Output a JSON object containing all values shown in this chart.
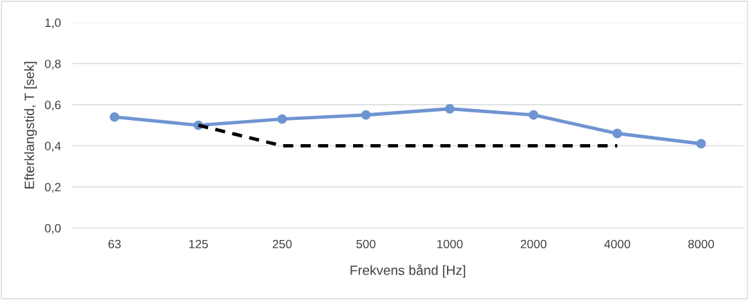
{
  "chart_data": {
    "type": "line",
    "xlabel": "Frekvens bånd [Hz]",
    "ylabel": "Efterklangstid, T [sek]",
    "categories": [
      "63",
      "125",
      "250",
      "500",
      "1000",
      "2000",
      "4000",
      "8000"
    ],
    "series": [
      {
        "color": "#6f94d2",
        "values": [
          0.54,
          0.5,
          0.53,
          0.55,
          0.58,
          0.55,
          0.46,
          0.41
        ],
        "marker": "circle",
        "line_style": "solid"
      },
      {
        "color": "#000000",
        "values": [
          null,
          0.5,
          0.4,
          0.4,
          0.4,
          0.4,
          0.4,
          null
        ],
        "marker": "none",
        "line_style": "dashed"
      }
    ],
    "ylim": [
      0,
      1.0
    ],
    "yticks": [
      {
        "value": 0,
        "label": "0,0"
      },
      {
        "value": 0.2,
        "label": "0,2"
      },
      {
        "value": 0.4,
        "label": "0,4"
      },
      {
        "value": 0.6,
        "label": "0,6"
      },
      {
        "value": 0.8,
        "label": "0,8"
      },
      {
        "value": 1.0,
        "label": "1,0"
      }
    ],
    "grid": "y",
    "legend": false
  }
}
